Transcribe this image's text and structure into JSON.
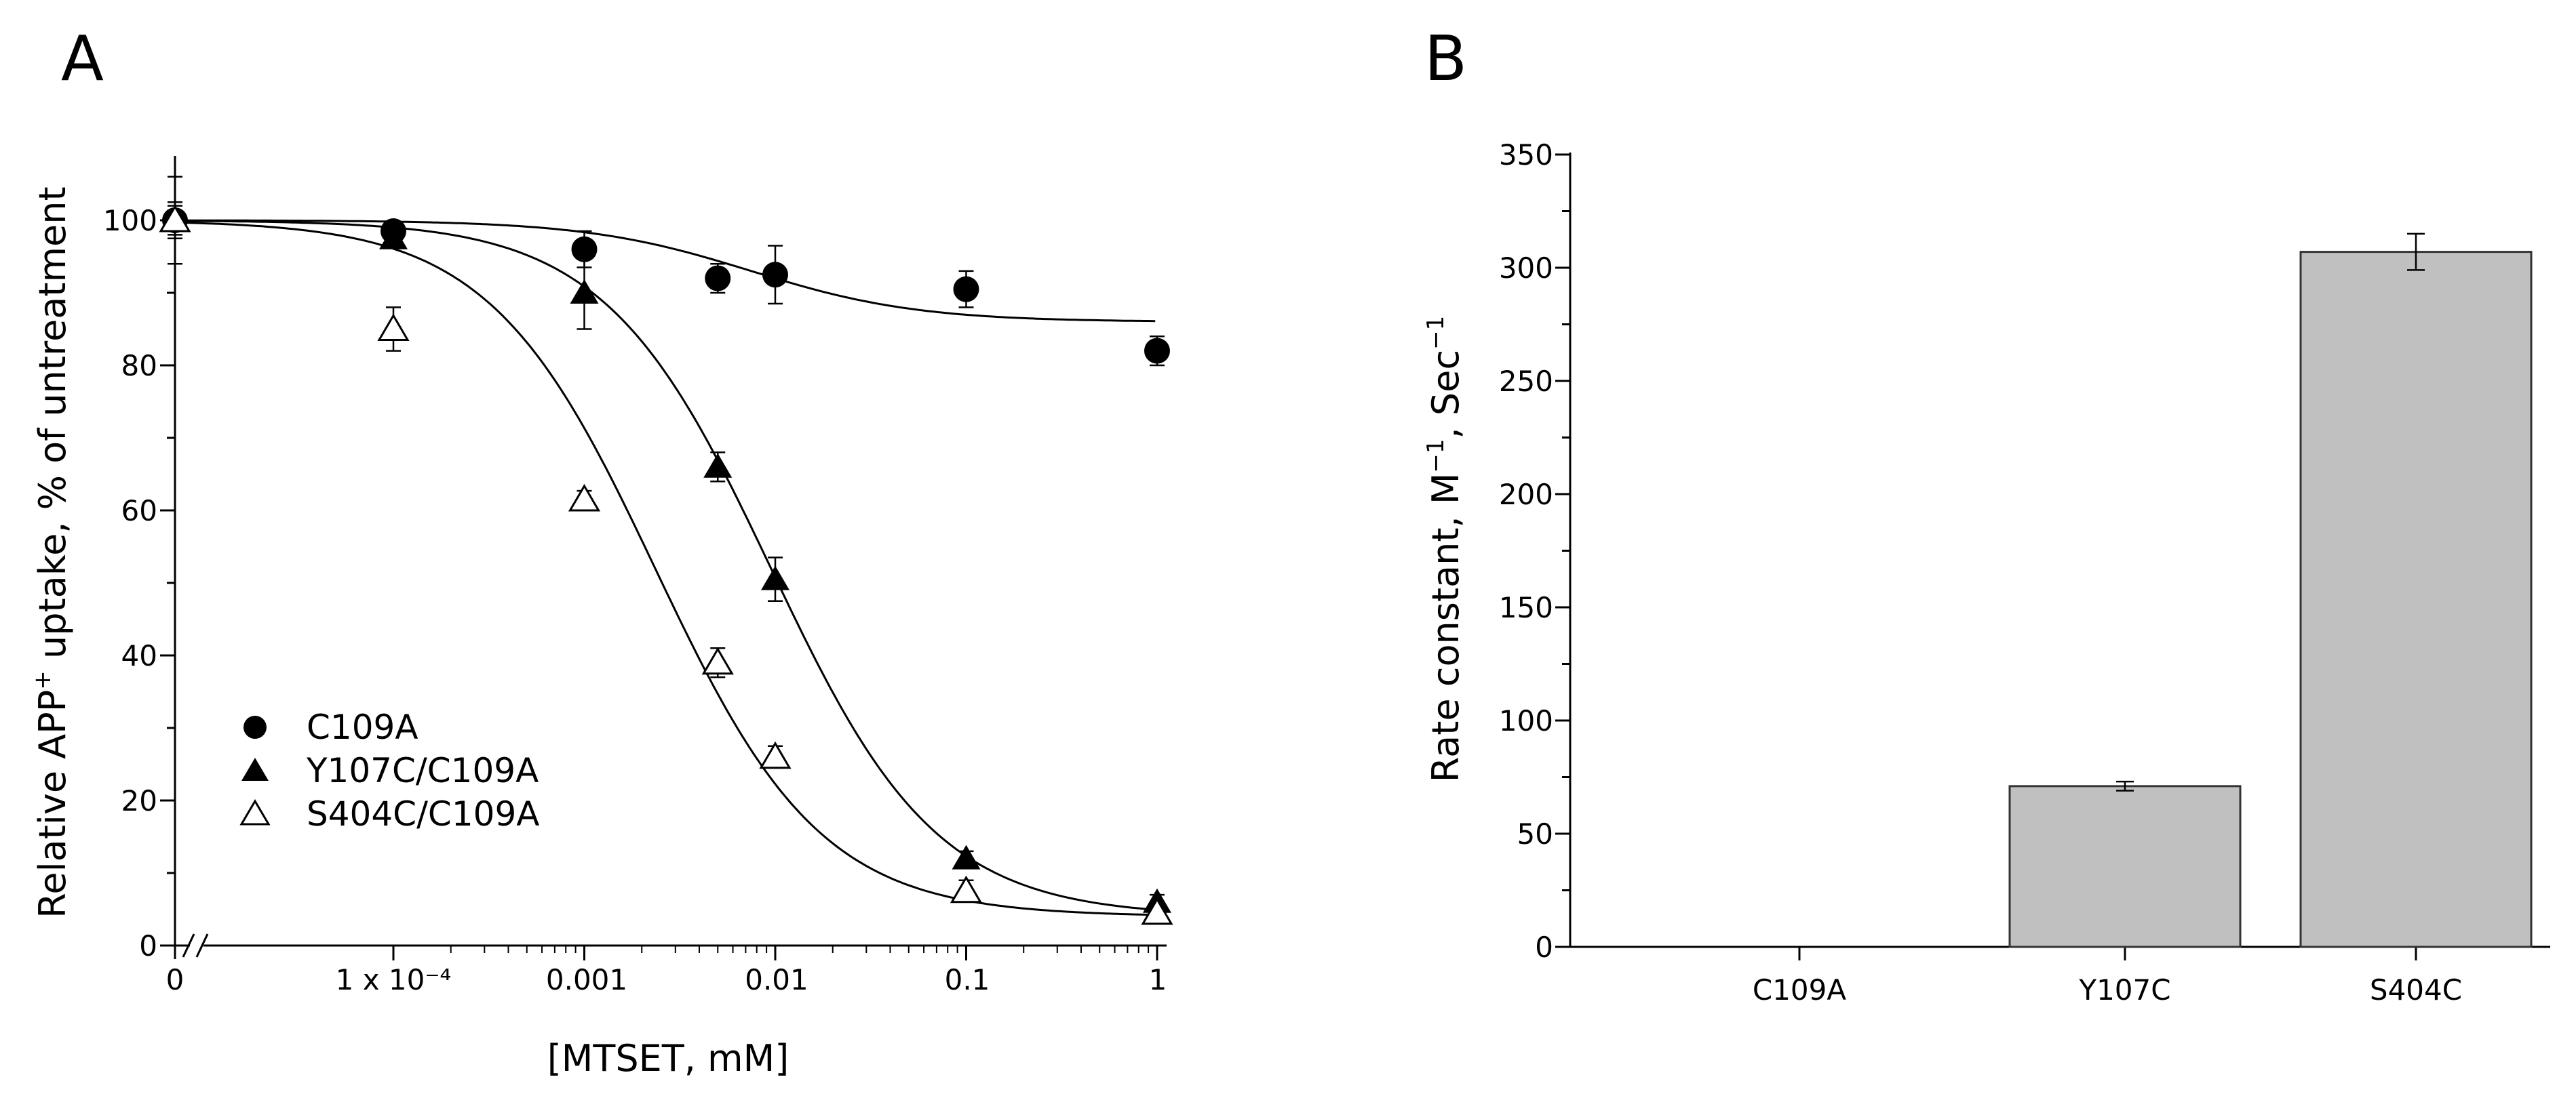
{
  "panel_a": {
    "letter": "A",
    "x_tick_labels": [
      "0",
      "1 x 10⁻⁴",
      "0.001",
      "0.01",
      "0.1",
      "1"
    ],
    "y_tick_labels": [
      "0",
      "20",
      "40",
      "60",
      "80",
      "100"
    ],
    "xlabel": "[MTSET, mM]",
    "ylabel_part1": "Relative APP",
    "ylabel_sup": "+",
    "ylabel_part2": " uptake, % of untreatment"
  },
  "panel_b": {
    "letter": "B",
    "y_tick_labels": [
      "0",
      "50",
      "100",
      "150",
      "200",
      "250",
      "300",
      "350"
    ],
    "ylabel_part1": "Rate constant, M",
    "ylabel_sup1": "−1",
    "ylabel_part2": ", Sec",
    "ylabel_sup2": "−1"
  },
  "chart_data": [
    {
      "type": "scatter",
      "panel": "A",
      "x_scale": "log (with 0 on broken axis)",
      "x": [
        "0",
        "1e-4",
        "0.001",
        "0.005",
        "0.01",
        "0.1",
        "1"
      ],
      "ylim": [
        0,
        110
      ],
      "xlabel": "[MTSET, mM]",
      "ylabel": "Relative APP+ uptake, % of untreatment",
      "legend_position": "lower-left",
      "series": [
        {
          "name": "C109A",
          "marker": "filled-circle",
          "points": [
            {
              "x": 0,
              "y": 100,
              "err": 6
            },
            {
              "x": 0.0001,
              "y": 98.5,
              "err": 1.2
            },
            {
              "x": 0.001,
              "y": 96,
              "err": 2.5
            },
            {
              "x": 0.005,
              "y": 92,
              "err": 2
            },
            {
              "x": 0.01,
              "y": 92.5,
              "err": 4
            },
            {
              "x": 0.1,
              "y": 90.5,
              "err": 2.5
            },
            {
              "x": 1,
              "y": 82,
              "err": 2
            }
          ],
          "fit": {
            "top": 100,
            "bottom": 86,
            "ic50": 0.0075,
            "hill": 1
          }
        },
        {
          "name": "Y107C/C109A",
          "marker": "filled-triangle",
          "points": [
            {
              "x": 0,
              "y": 100,
              "err": 2.5
            },
            {
              "x": 0.0001,
              "y": 97.5,
              "err": 1.2
            },
            {
              "x": 0.001,
              "y": 90,
              "err": 5
            },
            {
              "x": 0.005,
              "y": 66,
              "err": 2
            },
            {
              "x": 0.01,
              "y": 50.5,
              "err": 3
            },
            {
              "x": 0.1,
              "y": 12,
              "err": 1
            },
            {
              "x": 1,
              "y": 6,
              "err": 1
            }
          ],
          "fit": {
            "top": 100,
            "bottom": 4,
            "ic50": 0.0095,
            "hill": 1
          }
        },
        {
          "name": "S404C/C109A",
          "marker": "open-triangle",
          "points": [
            {
              "x": 0,
              "y": 100,
              "err": 2
            },
            {
              "x": 0.0001,
              "y": 85,
              "err": 3
            },
            {
              "x": 0.001,
              "y": 61.5,
              "err": 1.2
            },
            {
              "x": 0.005,
              "y": 39,
              "err": 2
            },
            {
              "x": 0.01,
              "y": 26,
              "err": 1.5
            },
            {
              "x": 0.1,
              "y": 7.5,
              "err": 1.5
            },
            {
              "x": 1,
              "y": 4.5,
              "err": 1
            }
          ],
          "fit": {
            "top": 100,
            "bottom": 4,
            "ic50": 0.00235,
            "hill": 1
          }
        }
      ]
    },
    {
      "type": "bar",
      "panel": "B",
      "categories": [
        "C109A",
        "Y107C",
        "S404C"
      ],
      "values": [
        0,
        71,
        307
      ],
      "errors": [
        0,
        2,
        8
      ],
      "ylim": [
        0,
        350
      ],
      "ylabel": "Rate constant, M−1, Sec−1",
      "bar_color": "#c0c0c0"
    }
  ]
}
